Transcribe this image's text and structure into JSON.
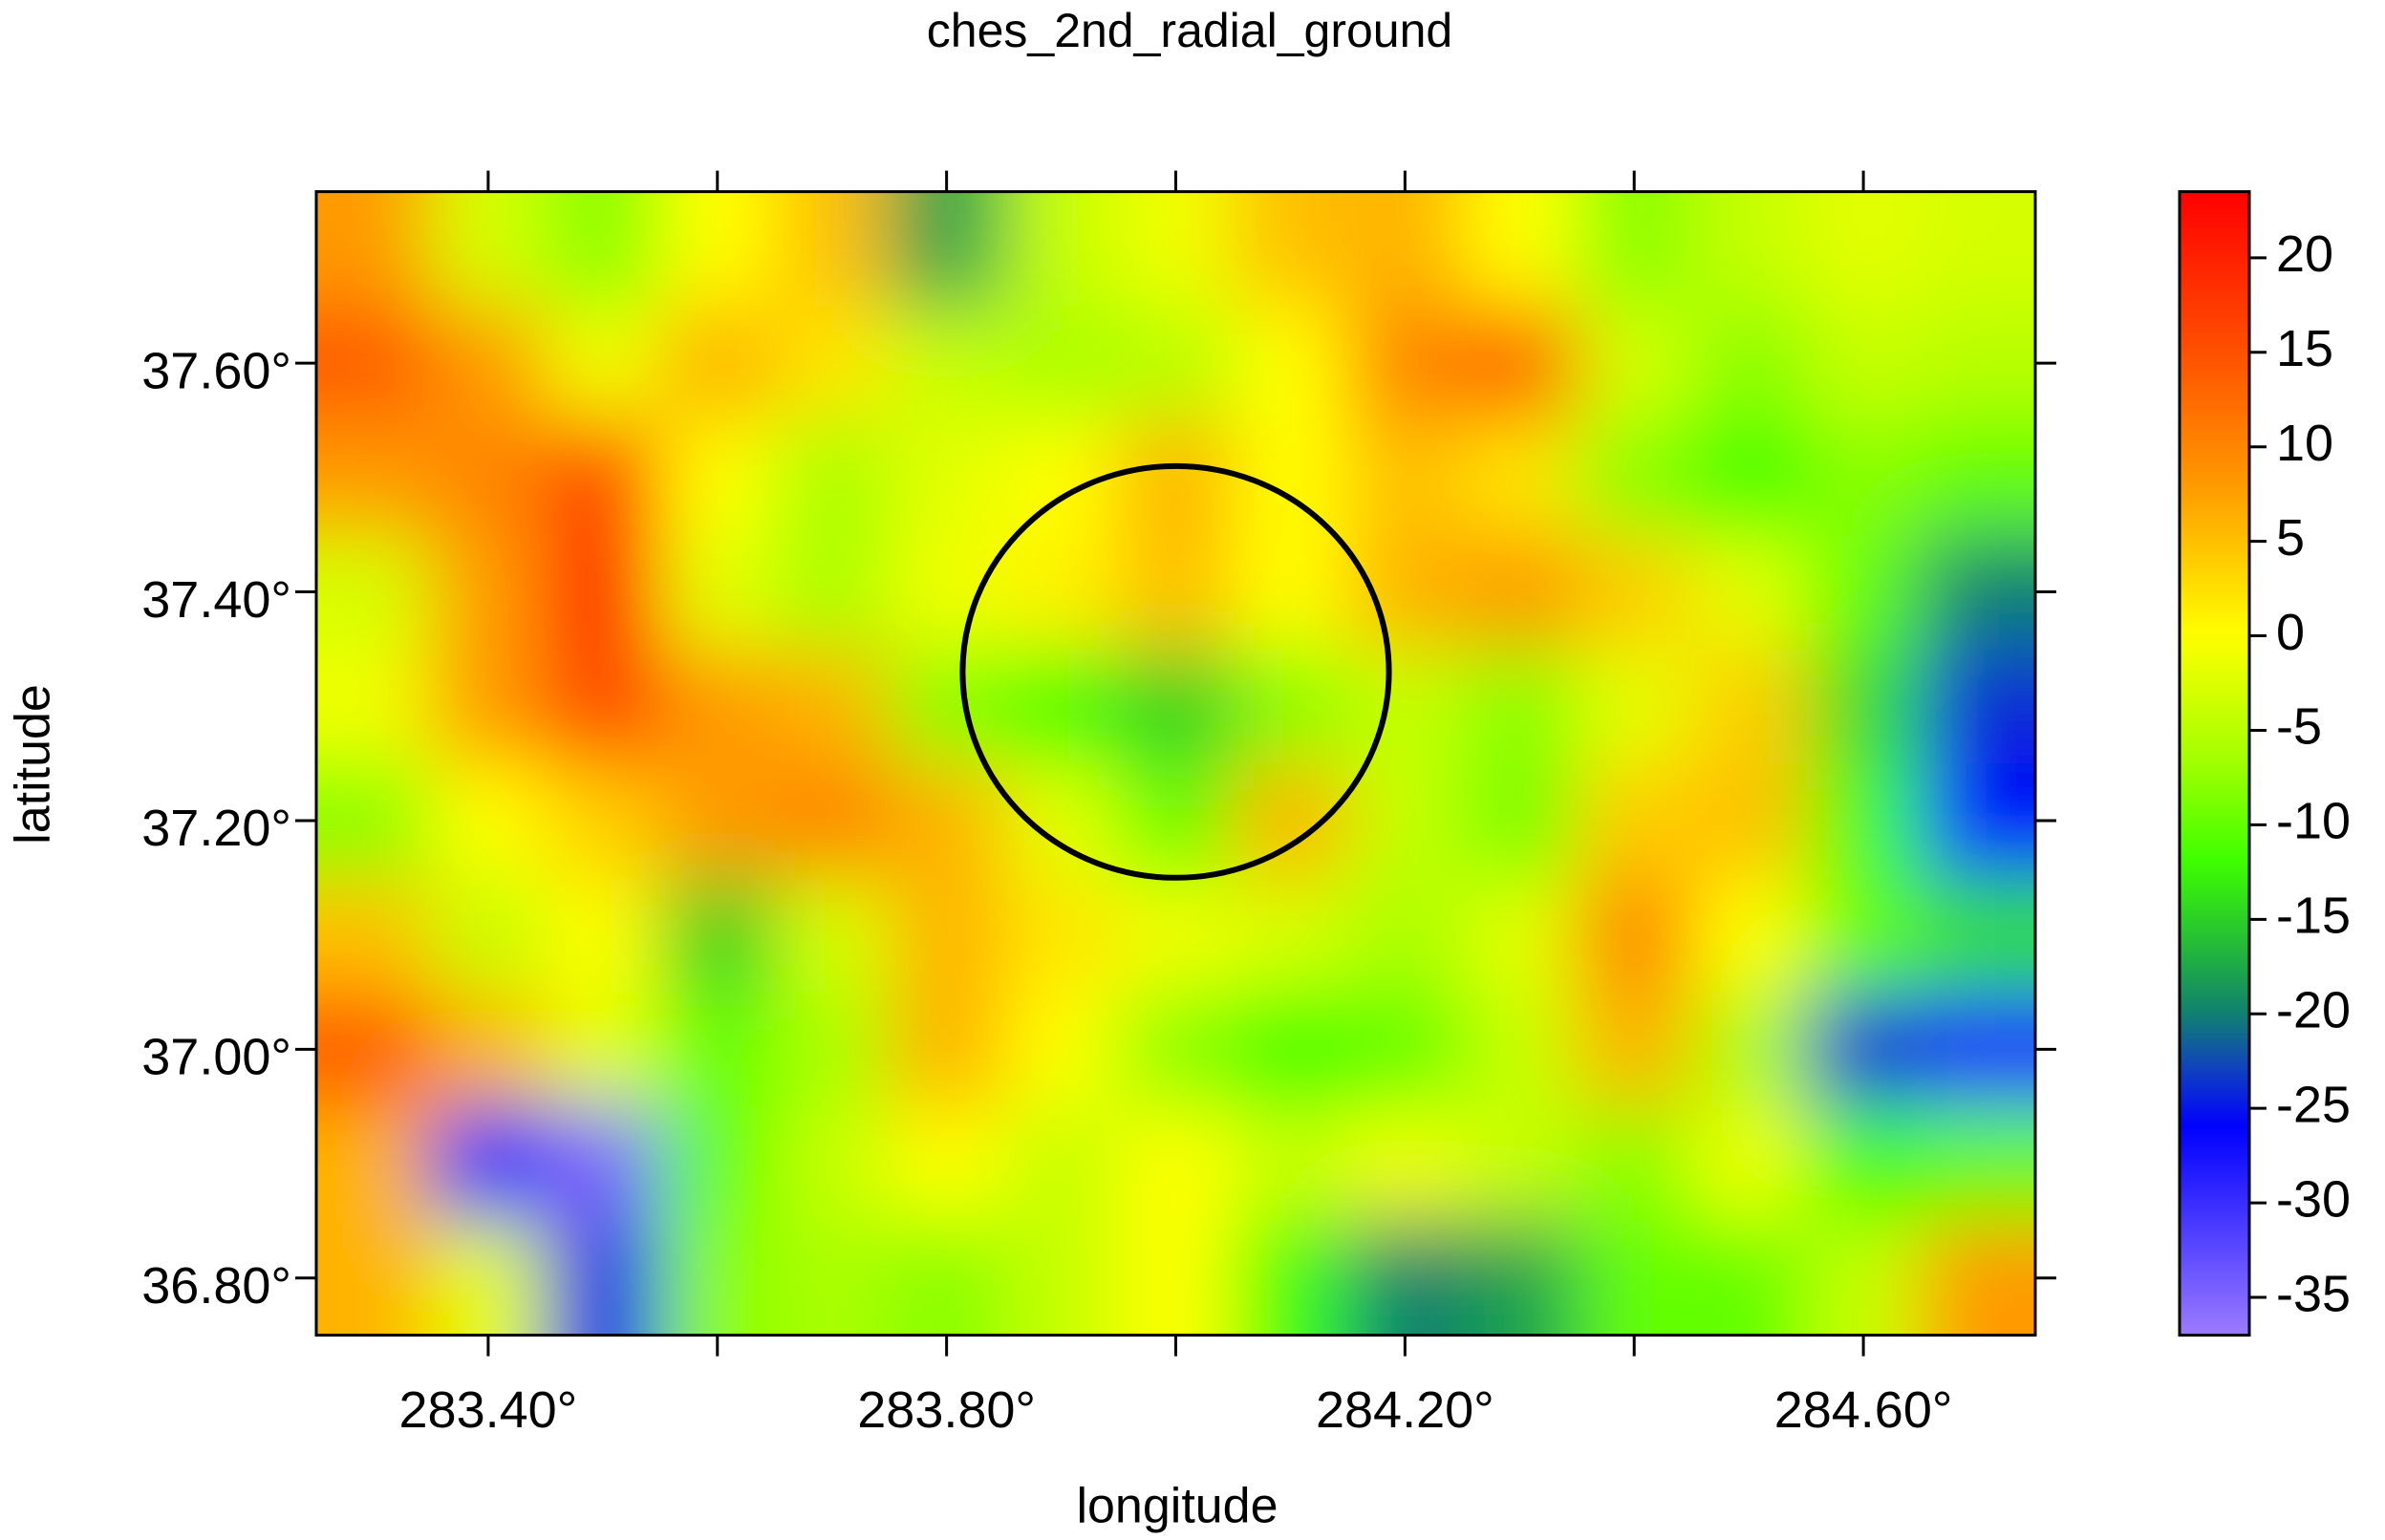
{
  "chart_data": {
    "type": "heatmap",
    "title": "ches_2nd_radial_ground",
    "x_label": "longitude",
    "y_label": "latitude",
    "x": [
      283.3,
      283.4,
      283.5,
      283.6,
      283.7,
      283.8,
      283.9,
      284.0,
      284.1,
      284.2,
      284.3,
      284.4,
      284.5,
      284.6,
      284.7
    ],
    "y": [
      37.7,
      37.6,
      37.5,
      37.4,
      37.3,
      37.2,
      37.1,
      37.0,
      36.9,
      36.8
    ],
    "z": [
      [
        8,
        -3,
        -8,
        0,
        5,
        -18,
        -4,
        -1,
        5,
        6,
        0,
        -8,
        -4,
        -2,
        -3
      ],
      [
        14,
        8,
        -1,
        6,
        2,
        -4,
        -6,
        -5,
        0,
        10,
        13,
        -3,
        -8,
        -4,
        -5
      ],
      [
        8,
        10,
        16,
        0,
        -6,
        -2,
        0,
        6,
        0,
        5,
        2,
        -8,
        -12,
        -8,
        -10
      ],
      [
        -3,
        8,
        20,
        -2,
        -6,
        -1,
        1,
        5,
        0,
        6,
        8,
        4,
        -2,
        -10,
        -20
      ],
      [
        -1,
        8,
        16,
        8,
        6,
        -8,
        -12,
        -15,
        -8,
        -4,
        -8,
        -2,
        4,
        -14,
        -24
      ],
      [
        -8,
        0,
        4,
        8,
        10,
        6,
        -2,
        -10,
        6,
        -4,
        -9,
        4,
        5,
        -12,
        -26
      ],
      [
        5,
        -4,
        0,
        -15,
        -3,
        6,
        2,
        -1,
        -3,
        -6,
        -2,
        10,
        0,
        -10,
        -14
      ],
      [
        14,
        6,
        -2,
        -10,
        -6,
        6,
        0,
        -8,
        -12,
        -10,
        -4,
        6,
        -6,
        -24,
        -28
      ],
      [
        6,
        -27,
        -35,
        -10,
        -4,
        0,
        -4,
        0,
        -4,
        -1,
        -4,
        -8,
        -1,
        -12,
        -10
      ],
      [
        6,
        -2,
        -25,
        -8,
        -6,
        -8,
        -4,
        0,
        -12,
        -20,
        -18,
        -10,
        -10,
        -4,
        8
      ]
    ],
    "xlim": [
      283.25,
      284.75
    ],
    "ylim": [
      36.75,
      37.75
    ],
    "xticks": [
      {
        "value": 283.4,
        "label": "283.40°"
      },
      {
        "value": 283.8,
        "label": "283.80°"
      },
      {
        "value": 284.2,
        "label": "284.20°"
      },
      {
        "value": 284.6,
        "label": "284.60°"
      }
    ],
    "xticks_minor": [
      283.6,
      284.0,
      284.4
    ],
    "yticks": [
      {
        "value": 37.6,
        "label": "37.60°"
      },
      {
        "value": 37.4,
        "label": "37.40°"
      },
      {
        "value": 37.2,
        "label": "37.20°"
      },
      {
        "value": 37.0,
        "label": "37.00°"
      },
      {
        "value": 36.8,
        "label": "36.80°"
      }
    ],
    "zlim": [
      -37,
      23.5
    ],
    "zticks": [
      20,
      15,
      10,
      5,
      0,
      -5,
      -10,
      -15,
      -20,
      -25,
      -30,
      -35
    ],
    "colorscale": [
      [
        23.5,
        "#ff0000"
      ],
      [
        15,
        "#ff5000"
      ],
      [
        8,
        "#ff9a00"
      ],
      [
        0,
        "#ffff00"
      ],
      [
        -7,
        "#9cff00"
      ],
      [
        -12,
        "#3cff00"
      ],
      [
        -17,
        "#20b040"
      ],
      [
        -20,
        "#108070"
      ],
      [
        -23,
        "#1040c0"
      ],
      [
        -26,
        "#0000ff"
      ],
      [
        -37,
        "#9b7bff"
      ]
    ],
    "circle": {
      "x": 284.0,
      "y": 37.33,
      "rx": 0.186,
      "ry": 0.18,
      "color": "#000000"
    }
  }
}
